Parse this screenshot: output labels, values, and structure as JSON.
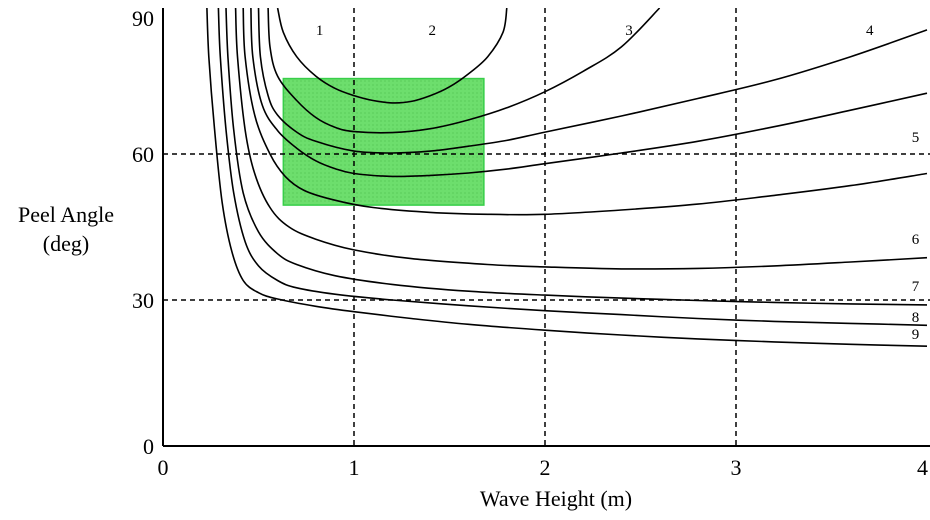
{
  "chart_data": {
    "type": "line",
    "title": "",
    "xlabel": "Wave Height (m)",
    "ylabel": [
      "Peel Angle",
      "(deg)"
    ],
    "xlim": [
      0,
      4
    ],
    "ylim": [
      0,
      90
    ],
    "x_ticks": [
      {
        "value": 0,
        "label": "0"
      },
      {
        "value": 1,
        "label": "1"
      },
      {
        "value": 2,
        "label": "2"
      },
      {
        "value": 3,
        "label": "3"
      },
      {
        "value": 4,
        "label": "4"
      }
    ],
    "y_ticks": [
      {
        "value": 0,
        "label": "0"
      },
      {
        "value": 30,
        "label": "30"
      },
      {
        "value": 60,
        "label": "60"
      },
      {
        "value": 90,
        "label": "90"
      }
    ],
    "grid": {
      "vertical_dashed_at_x": [
        1,
        2,
        3
      ],
      "horizontal_dashed_at_y": [
        30,
        60
      ]
    },
    "highlight_region": {
      "x": [
        0.63,
        1.68
      ],
      "y": [
        49.5,
        75.5
      ],
      "color": "#66dd66"
    },
    "series": [
      {
        "label": "1",
        "label_pos": [
          0.82,
          84.5
        ],
        "points": [
          [
            0.6,
            90
          ],
          [
            0.63,
            85
          ],
          [
            0.7,
            80
          ],
          [
            0.8,
            76
          ],
          [
            0.9,
            73.5
          ],
          [
            1.0,
            72
          ],
          [
            1.1,
            71
          ],
          [
            1.2,
            70.5
          ],
          [
            1.3,
            70.8
          ],
          [
            1.4,
            72
          ],
          [
            1.5,
            73.8
          ],
          [
            1.6,
            76.5
          ],
          [
            1.7,
            80
          ],
          [
            1.78,
            85
          ],
          [
            1.8,
            90
          ]
        ]
      },
      {
        "label": "2",
        "label_pos": [
          1.41,
          84.5
        ],
        "points": [
          [
            0.55,
            90
          ],
          [
            0.56,
            82
          ],
          [
            0.6,
            76
          ],
          [
            0.7,
            71
          ],
          [
            0.8,
            67.5
          ],
          [
            0.9,
            65.5
          ],
          [
            1.0,
            64.6
          ],
          [
            1.2,
            64.4
          ],
          [
            1.4,
            65.2
          ],
          [
            1.6,
            67
          ],
          [
            1.8,
            69.5
          ],
          [
            2.0,
            72.8
          ],
          [
            2.2,
            77
          ],
          [
            2.4,
            82
          ],
          [
            2.6,
            90
          ]
        ]
      },
      {
        "label": "3",
        "label_pos": [
          2.44,
          84.5
        ],
        "points": [
          [
            0.5,
            90
          ],
          [
            0.51,
            80
          ],
          [
            0.55,
            72
          ],
          [
            0.6,
            68
          ],
          [
            0.7,
            64.5
          ],
          [
            0.8,
            62.6
          ],
          [
            1.0,
            60.6
          ],
          [
            1.2,
            60.2
          ],
          [
            1.4,
            60.6
          ],
          [
            1.6,
            61.6
          ],
          [
            1.8,
            62.8
          ],
          [
            2.0,
            64.5
          ],
          [
            2.4,
            67.8
          ],
          [
            2.8,
            71.4
          ],
          [
            3.2,
            75.2
          ],
          [
            3.6,
            80
          ],
          [
            4.0,
            85.5
          ]
        ]
      },
      {
        "label": "4",
        "label_pos": [
          3.7,
          84.5
        ],
        "points": [
          [
            0.46,
            90
          ],
          [
            0.47,
            80
          ],
          [
            0.52,
            70
          ],
          [
            0.6,
            64.8
          ],
          [
            0.7,
            61.2
          ],
          [
            0.8,
            58.6
          ],
          [
            0.9,
            57
          ],
          [
            1.0,
            56
          ],
          [
            1.2,
            55.4
          ],
          [
            1.4,
            55.6
          ],
          [
            1.6,
            56.1
          ],
          [
            1.8,
            56.9
          ],
          [
            2.0,
            58
          ],
          [
            2.4,
            60.2
          ],
          [
            2.8,
            62.6
          ],
          [
            3.2,
            65.6
          ],
          [
            3.6,
            69
          ],
          [
            4.0,
            72.5
          ]
        ]
      },
      {
        "label": "5",
        "label_pos": [
          3.94,
          62.5
        ],
        "points": [
          [
            0.42,
            90
          ],
          [
            0.43,
            80
          ],
          [
            0.48,
            68
          ],
          [
            0.56,
            60
          ],
          [
            0.64,
            55.4
          ],
          [
            0.74,
            52.5
          ],
          [
            0.9,
            50.5
          ],
          [
            1.1,
            49
          ],
          [
            1.4,
            48
          ],
          [
            1.7,
            47.6
          ],
          [
            2.0,
            47.6
          ],
          [
            2.4,
            48.5
          ],
          [
            2.8,
            49.7
          ],
          [
            3.2,
            51.5
          ],
          [
            3.6,
            53.5
          ],
          [
            4.0,
            56
          ]
        ]
      },
      {
        "label": "6",
        "label_pos": [
          3.94,
          41.5
        ],
        "points": [
          [
            0.38,
            90
          ],
          [
            0.39,
            80
          ],
          [
            0.43,
            65
          ],
          [
            0.48,
            56
          ],
          [
            0.56,
            49
          ],
          [
            0.66,
            45
          ],
          [
            0.8,
            42.5
          ],
          [
            1.0,
            40.3
          ],
          [
            1.3,
            38.5
          ],
          [
            1.7,
            37.3
          ],
          [
            2.0,
            36.8
          ],
          [
            2.4,
            36.4
          ],
          [
            2.8,
            36.5
          ],
          [
            3.2,
            37
          ],
          [
            3.6,
            37.8
          ],
          [
            4.0,
            38.7
          ]
        ]
      },
      {
        "label": "7",
        "label_pos": [
          3.94,
          31.8
        ],
        "points": [
          [
            0.33,
            90
          ],
          [
            0.34,
            80
          ],
          [
            0.37,
            65
          ],
          [
            0.42,
            52
          ],
          [
            0.5,
            44
          ],
          [
            0.6,
            39.5
          ],
          [
            0.7,
            37.3
          ],
          [
            0.9,
            35
          ],
          [
            1.2,
            33.2
          ],
          [
            1.6,
            31.8
          ],
          [
            2.0,
            31
          ],
          [
            2.4,
            30.4
          ],
          [
            2.8,
            29.9
          ],
          [
            3.2,
            29.5
          ],
          [
            3.6,
            29.2
          ],
          [
            4.0,
            29
          ]
        ]
      },
      {
        "label": "8",
        "label_pos": [
          3.94,
          25.5
        ],
        "points": [
          [
            0.29,
            90
          ],
          [
            0.3,
            80
          ],
          [
            0.33,
            65
          ],
          [
            0.37,
            52
          ],
          [
            0.43,
            42
          ],
          [
            0.5,
            37
          ],
          [
            0.6,
            34
          ],
          [
            0.7,
            32.5
          ],
          [
            0.9,
            31.2
          ],
          [
            1.2,
            30
          ],
          [
            1.6,
            28.8
          ],
          [
            2.0,
            27.8
          ],
          [
            2.4,
            27
          ],
          [
            2.8,
            26.2
          ],
          [
            3.2,
            25.6
          ],
          [
            3.6,
            25.2
          ],
          [
            4.0,
            24.8
          ]
        ]
      },
      {
        "label": "9",
        "label_pos": [
          3.94,
          22
        ],
        "points": [
          [
            0.23,
            90
          ],
          [
            0.24,
            80
          ],
          [
            0.27,
            65
          ],
          [
            0.31,
            50
          ],
          [
            0.36,
            40
          ],
          [
            0.42,
            34
          ],
          [
            0.5,
            31.5
          ],
          [
            0.6,
            30.2
          ],
          [
            0.8,
            28.7
          ],
          [
            1.0,
            27.6
          ],
          [
            1.3,
            26.2
          ],
          [
            1.6,
            25
          ],
          [
            2.0,
            23.8
          ],
          [
            2.4,
            22.8
          ],
          [
            2.8,
            22
          ],
          [
            3.2,
            21.4
          ],
          [
            3.6,
            20.9
          ],
          [
            4.0,
            20.5
          ]
        ]
      }
    ]
  }
}
